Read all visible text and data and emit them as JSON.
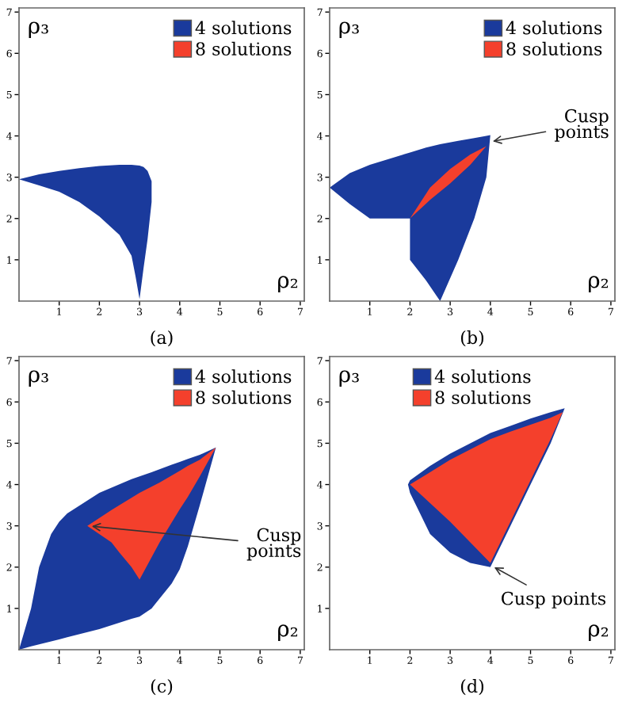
{
  "chart_data": [
    {
      "type": "area",
      "xlabel": "ρ₂",
      "ylabel": "ρ₃",
      "xlim": [
        0,
        7.1
      ],
      "ylim": [
        0,
        7.1
      ],
      "xticks": [
        1,
        2,
        3,
        4,
        5,
        6,
        7
      ],
      "yticks": [
        1,
        2,
        3,
        4,
        5,
        6,
        7
      ],
      "legend": "top right",
      "grid": false,
      "series": [
        {
          "name": "4 solutions",
          "color": "#1a3a9c",
          "x": [
            0,
            0.5,
            1,
            1.5,
            2,
            2.5,
            2.8,
            2.9,
            3.0,
            3.1,
            3.2,
            3.3,
            3.3,
            3.2,
            3.1,
            3.0,
            2.9,
            2.8,
            2.5,
            2,
            1.5,
            1,
            0.5
          ],
          "values": [
            2.95,
            3.07,
            3.15,
            3.22,
            3.27,
            3.3,
            3.3,
            3.29,
            3.28,
            3.25,
            3.15,
            2.9,
            2.4,
            1.5,
            0.8,
            0.05,
            0.6,
            1.1,
            1.6,
            2.05,
            2.4,
            2.65,
            2.8
          ]
        },
        {
          "name": "8 solutions",
          "color": "#f4402c"
        }
      ],
      "annotations": [
        "(a)"
      ]
    },
    {
      "type": "area",
      "xlabel": "ρ₂",
      "ylabel": "ρ₃",
      "xlim": [
        0,
        7.1
      ],
      "ylim": [
        0,
        7.1
      ],
      "xticks": [
        1,
        2,
        3,
        4,
        5,
        6,
        7
      ],
      "yticks": [
        1,
        2,
        3,
        4,
        5,
        6,
        7
      ],
      "legend": "top right",
      "grid": false,
      "series": [
        {
          "name": "4 solutions",
          "color": "#1a3a9c",
          "x": [
            0,
            0.5,
            1,
            2,
            2.4,
            2.75,
            3.2,
            3.6,
            3.9,
            4.0,
            3.9,
            3.6,
            3.2,
            2.75,
            2.4,
            2,
            2,
            1,
            0.5
          ],
          "values": [
            2.75,
            3.1,
            3.3,
            3.6,
            3.72,
            3.8,
            3.88,
            3.95,
            4.0,
            4.02,
            3.0,
            2.0,
            1.0,
            0.0,
            0.5,
            1.0,
            2.0,
            2.0,
            2.35
          ]
        },
        {
          "name": "8 solutions",
          "color": "#f4402c",
          "x": [
            2,
            2.5,
            3,
            3.5,
            3.9,
            3.5,
            3,
            2.5
          ],
          "values": [
            2.0,
            2.75,
            3.2,
            3.55,
            3.75,
            3.3,
            2.85,
            2.45
          ]
        }
      ],
      "annotations": [
        {
          "text": "Cusp\npoints",
          "x": 3.95,
          "y": 3.85
        },
        "(b)"
      ]
    },
    {
      "type": "area",
      "xlabel": "ρ₂",
      "ylabel": "ρ₃",
      "xlim": [
        0,
        7.1
      ],
      "ylim": [
        0,
        7.1
      ],
      "xticks": [
        1,
        2,
        3,
        4,
        5,
        6,
        7
      ],
      "yticks": [
        1,
        2,
        3,
        4,
        5,
        6,
        7
      ],
      "legend": "top right",
      "grid": false,
      "series": [
        {
          "name": "4 solutions",
          "color": "#1a3a9c",
          "x": [
            0,
            0.3,
            0.5,
            0.8,
            1,
            1.2,
            2,
            2.8,
            3,
            3.3,
            3.8,
            4,
            4.2,
            4.5,
            4.9,
            4.5,
            4.2,
            4,
            3.8,
            3.3,
            3,
            2.8,
            2,
            1.2,
            1,
            0.8,
            0.5,
            0.3
          ],
          "values": [
            0,
            1.0,
            2.0,
            2.8,
            3.1,
            3.3,
            3.8,
            4.13,
            4.2,
            4.3,
            4.48,
            4.55,
            4.62,
            4.72,
            4.9,
            3.5,
            2.5,
            1.95,
            1.6,
            1.0,
            0.8,
            0.75,
            0.5,
            0.3,
            0.25,
            0.2,
            0.13,
            0.08
          ]
        },
        {
          "name": "8 solutions",
          "color": "#f4402c",
          "x": [
            1.7,
            2.3,
            2.5,
            2.8,
            3.0,
            3.5,
            4.0,
            4.2,
            4.5,
            4.9,
            4.5,
            4.2,
            4.0,
            3.5,
            3.0,
            2.8,
            2.5,
            2.3
          ],
          "values": [
            3.0,
            3.38,
            3.5,
            3.68,
            3.8,
            4.05,
            4.33,
            4.45,
            4.6,
            4.9,
            4.2,
            3.7,
            3.4,
            2.6,
            1.7,
            2.0,
            2.35,
            2.6
          ]
        }
      ],
      "annotations": [
        {
          "text": "Cusp\npoints",
          "x": 1.7,
          "y": 3.0
        },
        "(c)"
      ]
    },
    {
      "type": "area",
      "xlabel": "ρ₂",
      "ylabel": "ρ₃",
      "xlim": [
        0,
        7.1
      ],
      "ylim": [
        0,
        7.1
      ],
      "xticks": [
        1,
        2,
        3,
        4,
        5,
        6,
        7
      ],
      "yticks": [
        1,
        2,
        3,
        4,
        5,
        6,
        7
      ],
      "legend": "top",
      "grid": false,
      "series": [
        {
          "name": "4 solutions",
          "color": "#1a3a9c",
          "x": [
            1.95,
            2,
            2.5,
            3,
            3.5,
            4,
            4.5,
            5,
            5.5,
            5.85,
            5.5,
            5,
            4.5,
            4,
            3.5,
            3,
            2.5,
            2
          ],
          "values": [
            4.0,
            4.1,
            4.45,
            4.75,
            5.0,
            5.25,
            5.42,
            5.6,
            5.75,
            5.85,
            5.0,
            4.0,
            3.0,
            2.0,
            2.1,
            2.35,
            2.8,
            3.8
          ]
        },
        {
          "name": "8 solutions",
          "color": "#f4402c",
          "x": [
            2,
            2.5,
            3,
            3.5,
            4,
            4.5,
            5,
            5.5,
            5.8,
            5.5,
            5,
            4.5,
            4,
            3.5,
            3,
            2.5
          ],
          "values": [
            4.0,
            4.3,
            4.6,
            4.85,
            5.1,
            5.28,
            5.45,
            5.62,
            5.75,
            5.1,
            4.1,
            3.1,
            2.1,
            2.6,
            3.1,
            3.55
          ]
        }
      ],
      "annotations": [
        {
          "text": "Cusp points",
          "x": 4.0,
          "y": 2.05
        },
        "(d)"
      ]
    }
  ]
}
